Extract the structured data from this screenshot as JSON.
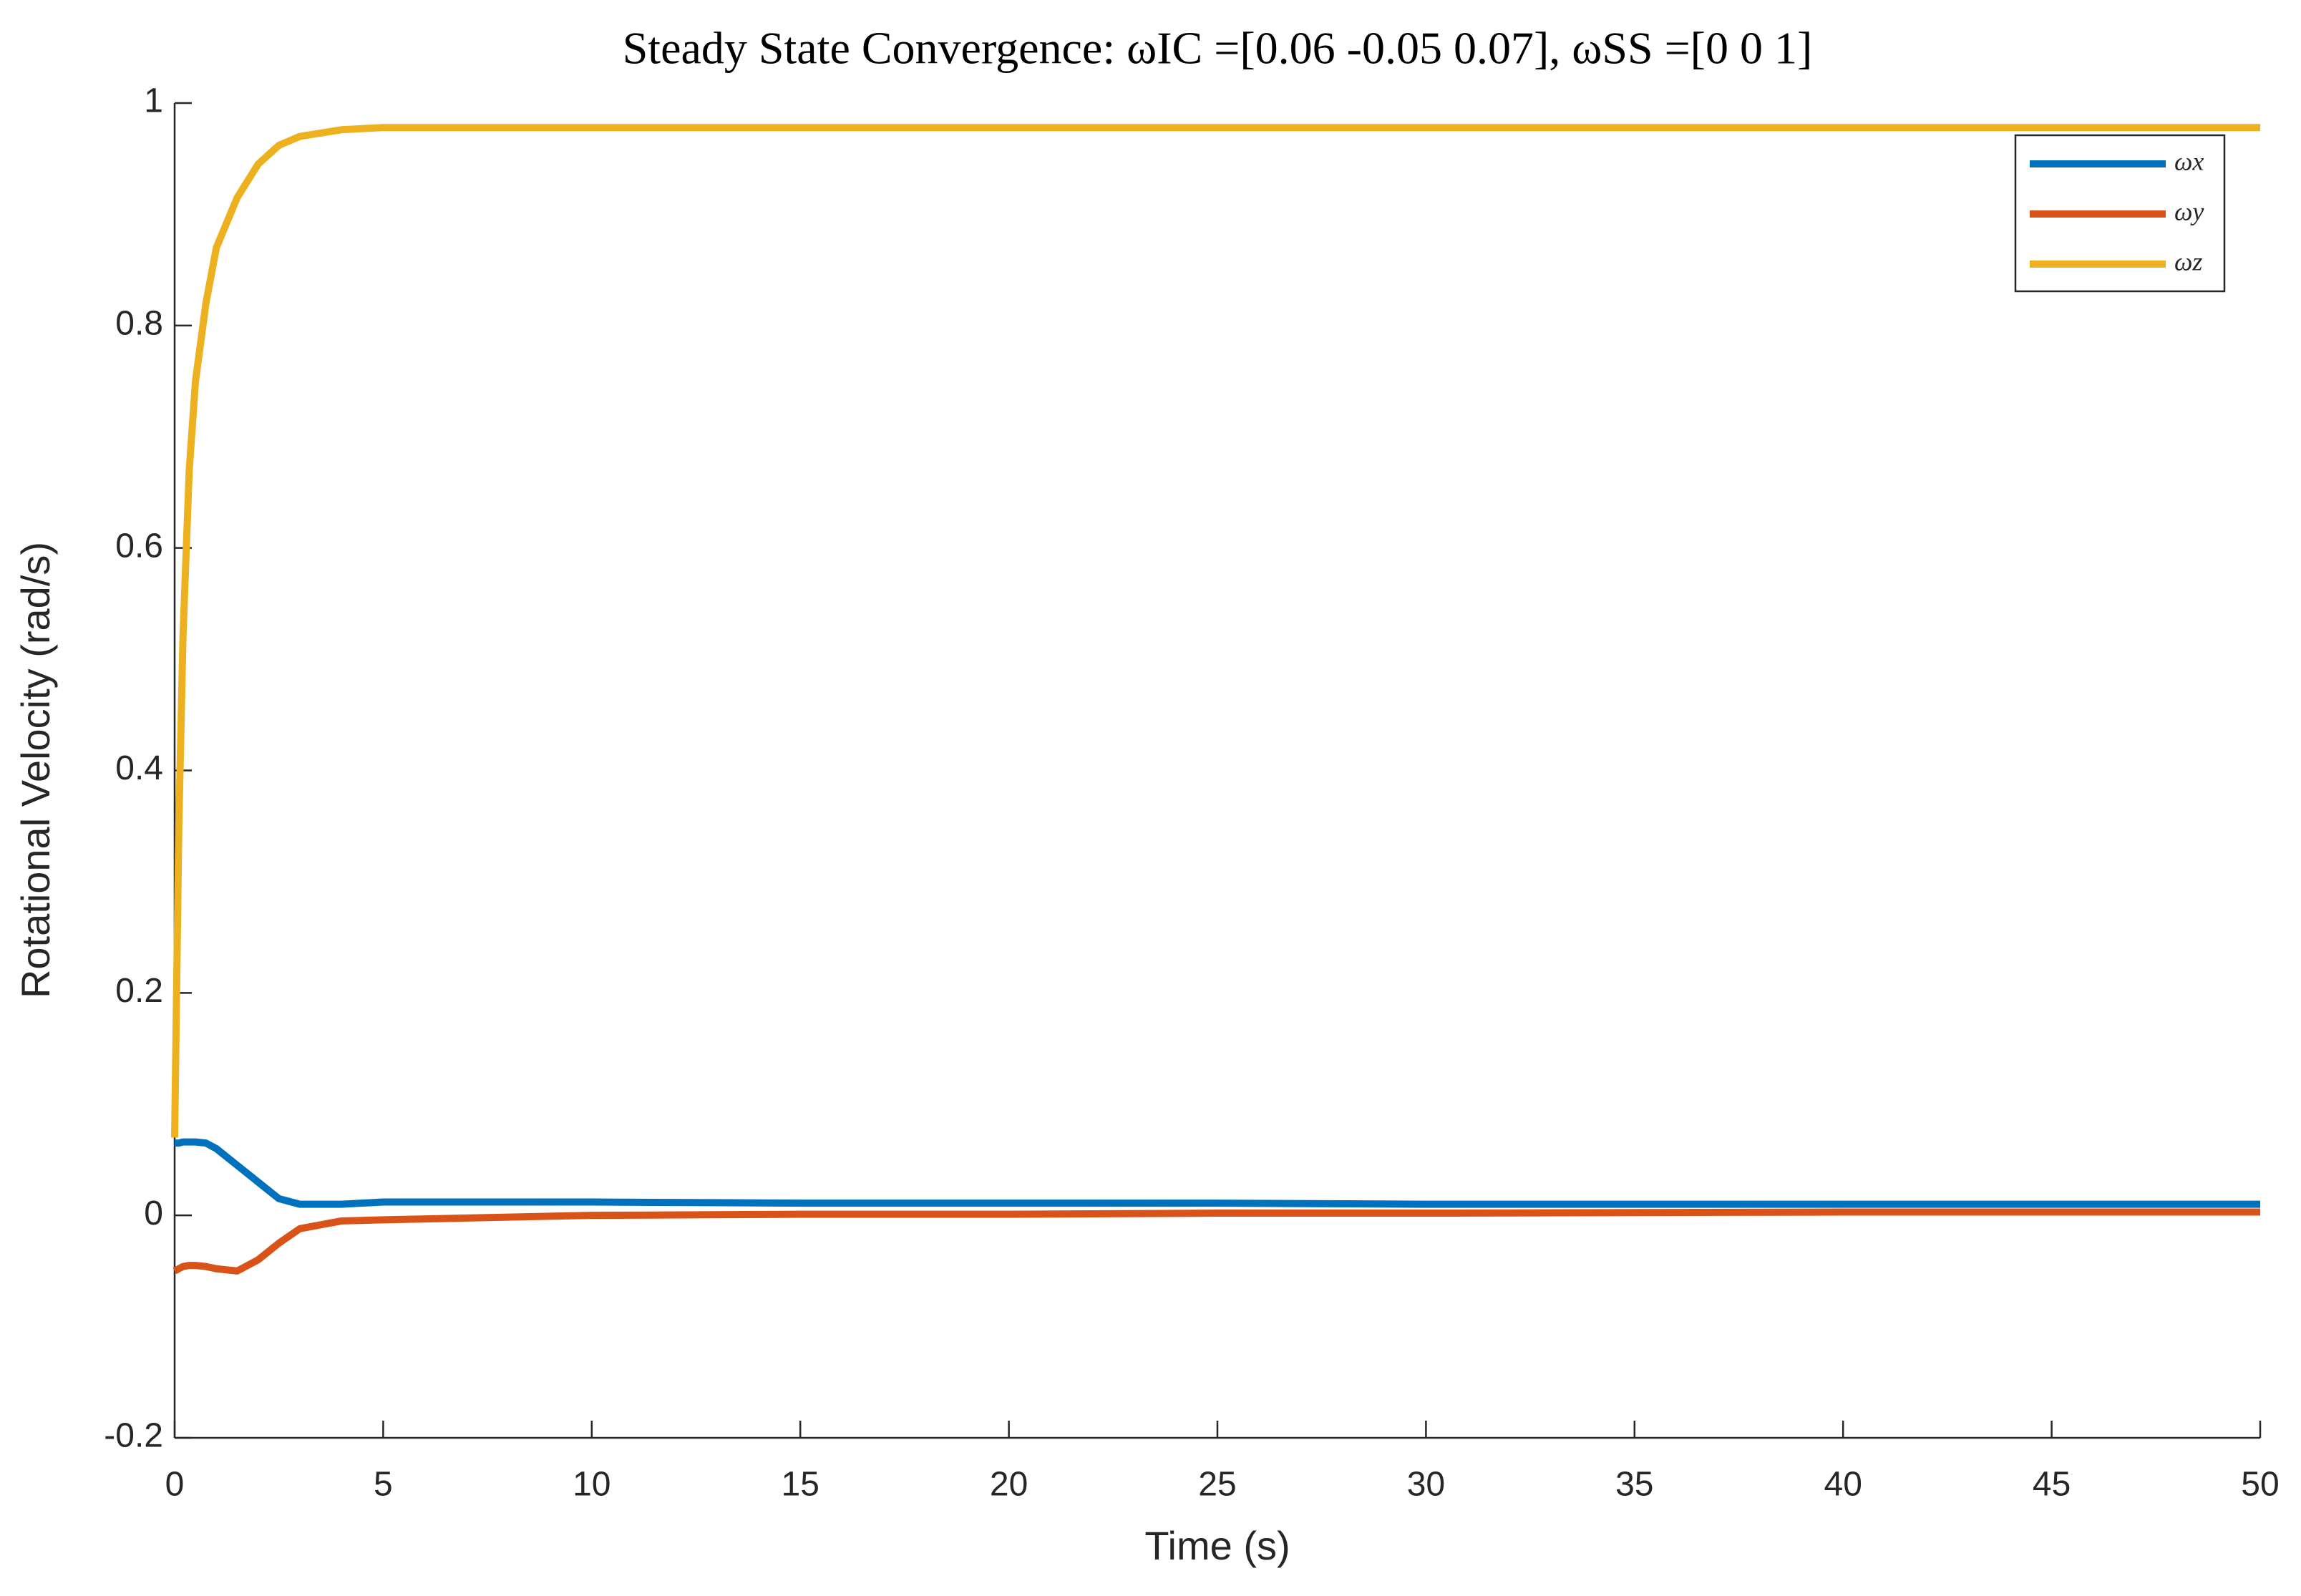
{
  "chart_data": {
    "type": "line",
    "title": "Steady State Convergence: ωIC =[0.06 -0.05 0.07], ωSS =[0 0 1]",
    "xlabel": "Time (s)",
    "ylabel": "Rotational Velocity (rad/s)",
    "x": [
      0,
      0.1,
      0.2,
      0.35,
      0.5,
      0.75,
      1,
      1.5,
      2,
      2.5,
      3,
      4,
      5,
      10,
      15,
      20,
      25,
      30,
      40,
      50
    ],
    "series": [
      {
        "name": "ωx",
        "color": "#0072bd",
        "values": [
          0.065,
          0.065,
          0.066,
          0.066,
          0.066,
          0.065,
          0.06,
          0.045,
          0.03,
          0.015,
          0.01,
          0.01,
          0.012,
          0.012,
          0.011,
          0.011,
          0.011,
          0.01,
          0.01,
          0.01
        ]
      },
      {
        "name": "ωy",
        "color": "#d95319",
        "values": [
          -0.05,
          -0.048,
          -0.046,
          -0.045,
          -0.045,
          -0.046,
          -0.048,
          -0.05,
          -0.04,
          -0.025,
          -0.012,
          -0.005,
          -0.004,
          0,
          0.001,
          0.001,
          0.002,
          0.002,
          0.003,
          0.003
        ]
      },
      {
        "name": "ωz",
        "color": "#edb120",
        "values": [
          0.07,
          0.35,
          0.52,
          0.67,
          0.75,
          0.82,
          0.87,
          0.915,
          0.945,
          0.962,
          0.97,
          0.976,
          0.978,
          0.978,
          0.978,
          0.978,
          0.978,
          0.978,
          0.978,
          0.978
        ]
      }
    ],
    "xlim": [
      0,
      50
    ],
    "xticks": [
      0,
      5,
      10,
      15,
      20,
      25,
      30,
      35,
      40,
      45,
      50
    ],
    "ylim": [
      -0.2,
      1
    ],
    "yticks": [
      -0.2,
      0,
      0.2,
      0.4,
      0.6,
      0.8,
      1
    ],
    "legend": "upper-right"
  }
}
